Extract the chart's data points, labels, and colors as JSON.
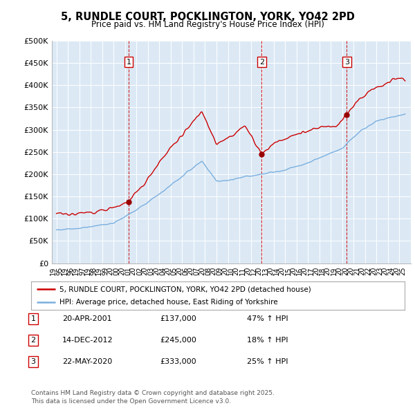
{
  "title": "5, RUNDLE COURT, POCKLINGTON, YORK, YO42 2PD",
  "subtitle": "Price paid vs. HM Land Registry's House Price Index (HPI)",
  "background_color": "#dce9f5",
  "plot_bg_color": "#dce9f5",
  "ylim": [
    0,
    500000
  ],
  "yticks": [
    0,
    50000,
    100000,
    150000,
    200000,
    250000,
    300000,
    350000,
    400000,
    450000,
    500000
  ],
  "sale_points": [
    {
      "label": "1",
      "date_num": 2001.31,
      "price": 137000
    },
    {
      "label": "2",
      "date_num": 2012.96,
      "price": 245000
    },
    {
      "label": "3",
      "date_num": 2020.39,
      "price": 333000
    }
  ],
  "sale_info": [
    {
      "num": "1",
      "date": "20-APR-2001",
      "price": "£137,000",
      "hpi": "47% ↑ HPI"
    },
    {
      "num": "2",
      "date": "14-DEC-2012",
      "price": "£245,000",
      "hpi": "18% ↑ HPI"
    },
    {
      "num": "3",
      "date": "22-MAY-2020",
      "price": "£333,000",
      "hpi": "25% ↑ HPI"
    }
  ],
  "legend_entries": [
    {
      "label": "5, RUNDLE COURT, POCKLINGTON, YORK, YO42 2PD (detached house)",
      "color": "#cc0000"
    },
    {
      "label": "HPI: Average price, detached house, East Riding of Yorkshire",
      "color": "#7aafdf"
    }
  ],
  "footer": "Contains HM Land Registry data © Crown copyright and database right 2025.\nThis data is licensed under the Open Government Licence v3.0.",
  "vline_color": "#cc0000",
  "sale_marker_color": "#990000",
  "hpi_line_color": "#7aafdf",
  "price_line_color": "#cc0000"
}
